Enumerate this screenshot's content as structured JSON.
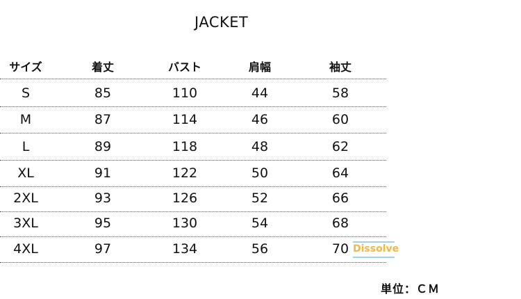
{
  "title": "JACKET",
  "headers": [
    "サイズ",
    "着丈",
    "バスト",
    "肩幅",
    "袖丈"
  ],
  "rows": [
    [
      "S",
      "85",
      "110",
      "44",
      "58"
    ],
    [
      "M",
      "87",
      "114",
      "46",
      "60"
    ],
    [
      "L",
      "89",
      "118",
      "48",
      "62"
    ],
    [
      "XL",
      "91",
      "122",
      "50",
      "64"
    ],
    [
      "2XL",
      "93",
      "126",
      "52",
      "66"
    ],
    [
      "3XL",
      "95",
      "130",
      "54",
      "68"
    ],
    [
      "4XL",
      "97",
      "134",
      "56",
      "70"
    ]
  ],
  "watermark": "Dissolve",
  "unit": "単位：ＣＭ"
}
